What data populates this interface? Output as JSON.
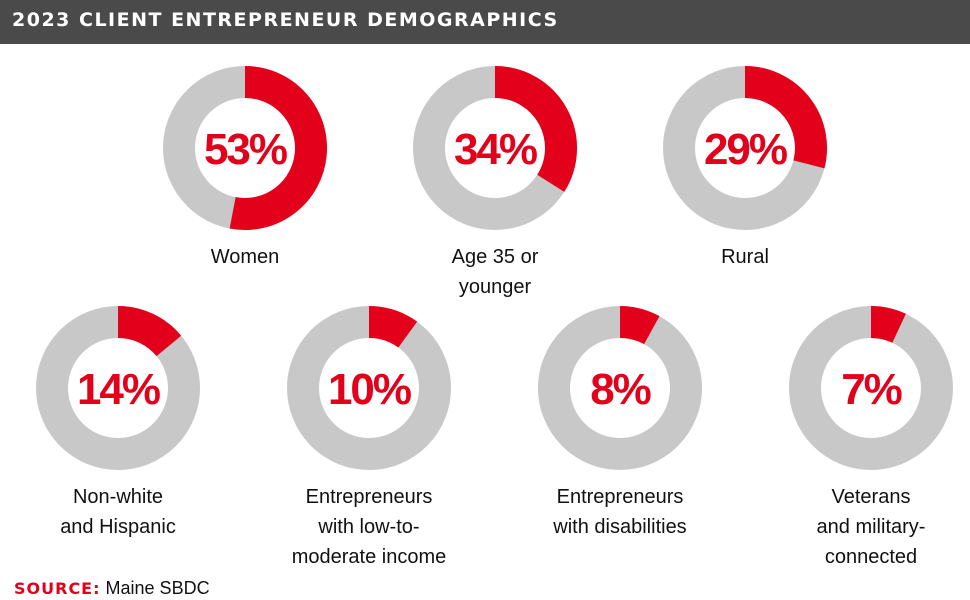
{
  "header": {
    "title": "2023 CLIENT ENTREPRENEUR DEMOGRAPHICS"
  },
  "colors": {
    "accent": "#e3001b",
    "remainder": "#c8c8c8",
    "header_bg": "#4a4a4a"
  },
  "chart_data": {
    "type": "pie",
    "title": "2023 CLIENT ENTREPRENEUR DEMOGRAPHICS",
    "unit": "%",
    "series": [
      {
        "label": "53%",
        "value": 53,
        "name_lines": [
          "Women"
        ]
      },
      {
        "label": "34%",
        "value": 34,
        "name_lines": [
          "Age 35 or",
          "younger"
        ]
      },
      {
        "label": "29%",
        "value": 29,
        "name_lines": [
          "Rural"
        ]
      },
      {
        "label": "14%",
        "value": 14,
        "name_lines": [
          "Non-white",
          "and Hispanic"
        ]
      },
      {
        "label": "10%",
        "value": 10,
        "name_lines": [
          "Entrepreneurs",
          "with low-to-",
          "moderate income"
        ]
      },
      {
        "label": "8%",
        "value": 8,
        "name_lines": [
          "Entrepreneurs",
          "with disabilities"
        ]
      },
      {
        "label": "7%",
        "value": 7,
        "name_lines": [
          "Veterans",
          "and military-",
          "connected"
        ]
      }
    ]
  },
  "source": {
    "key": "SOURCE:",
    "value": "Maine SBDC"
  }
}
